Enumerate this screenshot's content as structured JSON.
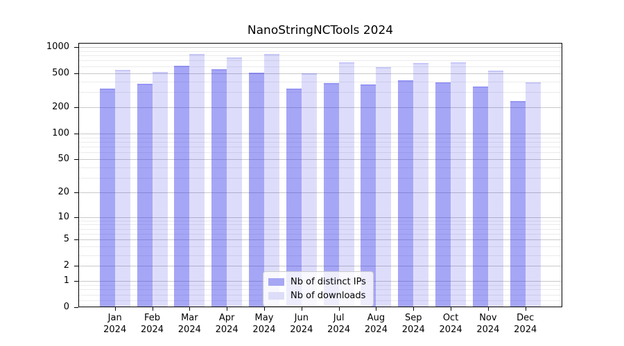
{
  "chart_data": {
    "type": "bar",
    "title": "NanoStringNCTools 2024",
    "categories": [
      "Jan",
      "Feb",
      "Mar",
      "Apr",
      "May",
      "Jun",
      "Jul",
      "Aug",
      "Sep",
      "Oct",
      "Nov",
      "Dec"
    ],
    "year_label": "2024",
    "series": [
      {
        "name": "Nb of distinct IPs",
        "color": "#a7a7f4",
        "fill": "rgba(43,43,233,0.42)",
        "values": [
          333,
          377,
          612,
          551,
          508,
          330,
          382,
          371,
          414,
          391,
          352,
          238
        ]
      },
      {
        "name": "Nb of downloads",
        "color": "#ddddf9",
        "fill": "rgba(43,43,233,0.16)",
        "values": [
          548,
          513,
          835,
          762,
          828,
          495,
          664,
          587,
          655,
          672,
          536,
          389
        ]
      }
    ],
    "yscale": "log1p",
    "y_major_ticks": [
      0,
      1,
      2,
      5,
      10,
      20,
      50,
      100,
      200,
      500,
      1000
    ],
    "y_minor_ticks": [
      0.2,
      0.4,
      0.6,
      0.8,
      3,
      4,
      6,
      7,
      8,
      9,
      30,
      40,
      60,
      70,
      80,
      90,
      300,
      400,
      600,
      700,
      800,
      900
    ],
    "ylim": [
      0,
      1100
    ],
    "grid": true,
    "legend_position": "lower-center",
    "grid_major_color": "#c9c9c9",
    "grid_minor_color": "#ebebeb"
  },
  "legend": {
    "items": [
      {
        "label": "Nb of distinct IPs",
        "color": "#a7a7f4"
      },
      {
        "label": "Nb of downloads",
        "color": "#ddddf9"
      }
    ]
  }
}
